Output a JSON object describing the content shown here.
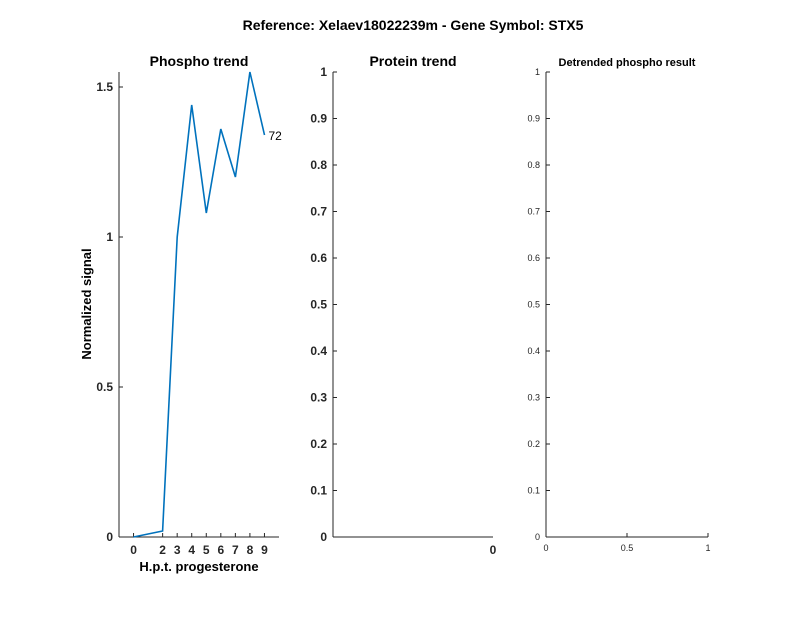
{
  "figure_title": "Reference:  Xelaev18022239m - Gene Symbol:  STX5",
  "chart_data": [
    {
      "type": "line",
      "title": "Phospho trend",
      "xlabel": "H.p.t. progesterone",
      "ylabel": "Normalized signal",
      "x": [
        0,
        2,
        3,
        4,
        5,
        6,
        7,
        8,
        9
      ],
      "series": [
        {
          "values": [
            0,
            0.02,
            1.0,
            1.44,
            1.08,
            1.36,
            1.2,
            1.55,
            1.34
          ],
          "color": "#0072BD"
        }
      ],
      "end_label": "72",
      "xlim": [
        -1,
        10
      ],
      "ylim": [
        0,
        1.55
      ],
      "xticks": [
        "0",
        "2",
        "3",
        "4",
        "5",
        "6",
        "7",
        "8",
        "9"
      ],
      "yticks": [
        "0",
        "0.5",
        "1",
        "1.5"
      ],
      "grid": false
    },
    {
      "type": "line",
      "title": "Protein trend",
      "xlabel": "",
      "ylabel": "",
      "series": [],
      "ylim": [
        0,
        1
      ],
      "yticks": [
        "0",
        "0.1",
        "0.2",
        "0.3",
        "0.4",
        "0.5",
        "0.6",
        "0.7",
        "0.8",
        "0.9",
        "1"
      ],
      "xticks": [
        "0"
      ],
      "grid": false
    },
    {
      "type": "line",
      "title": "Detrended phospho result",
      "xlabel": "",
      "ylabel": "",
      "series": [],
      "xlim": [
        0,
        1
      ],
      "ylim": [
        0,
        1
      ],
      "yticks": [
        "0",
        "0.1",
        "0.2",
        "0.3",
        "0.4",
        "0.5",
        "0.6",
        "0.7",
        "0.8",
        "0.9",
        "1"
      ],
      "xticks": [
        "0",
        "0.5",
        "1"
      ],
      "grid": false
    }
  ]
}
